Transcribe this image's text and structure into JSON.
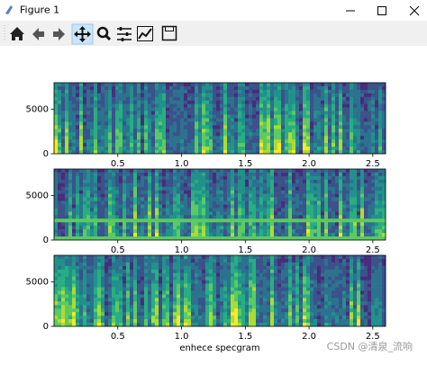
{
  "window": {
    "title": "Figure 1"
  },
  "chart_data": [
    {
      "type": "spectrogram",
      "xlim": [
        0,
        2.6
      ],
      "ylim": [
        0,
        8000
      ],
      "xticks": [
        0.5,
        {
          "value": 1,
          "label": "1.0"
        },
        1.5,
        {
          "value": 2,
          "label": "2.0"
        },
        2.5
      ],
      "yticks": [
        0,
        5000
      ]
    },
    {
      "type": "spectrogram",
      "xlim": [
        0,
        2.6
      ],
      "ylim": [
        0,
        8000
      ],
      "xticks": [
        0.5,
        {
          "value": 1,
          "label": "1.0"
        },
        1.5,
        {
          "value": 2,
          "label": "2.0"
        },
        2.5
      ],
      "yticks": [
        0,
        5000
      ]
    },
    {
      "type": "spectrogram",
      "xlim": [
        0,
        2.6
      ],
      "ylim": [
        0,
        8000
      ],
      "xticks": [
        0.5,
        {
          "value": 1,
          "label": "1.0"
        },
        1.5,
        {
          "value": 2,
          "label": "2.0"
        },
        2.5
      ],
      "yticks": [
        0,
        5000
      ],
      "x_label": "enhece specgram"
    }
  ],
  "watermark": "CSDN @清泉_流响"
}
